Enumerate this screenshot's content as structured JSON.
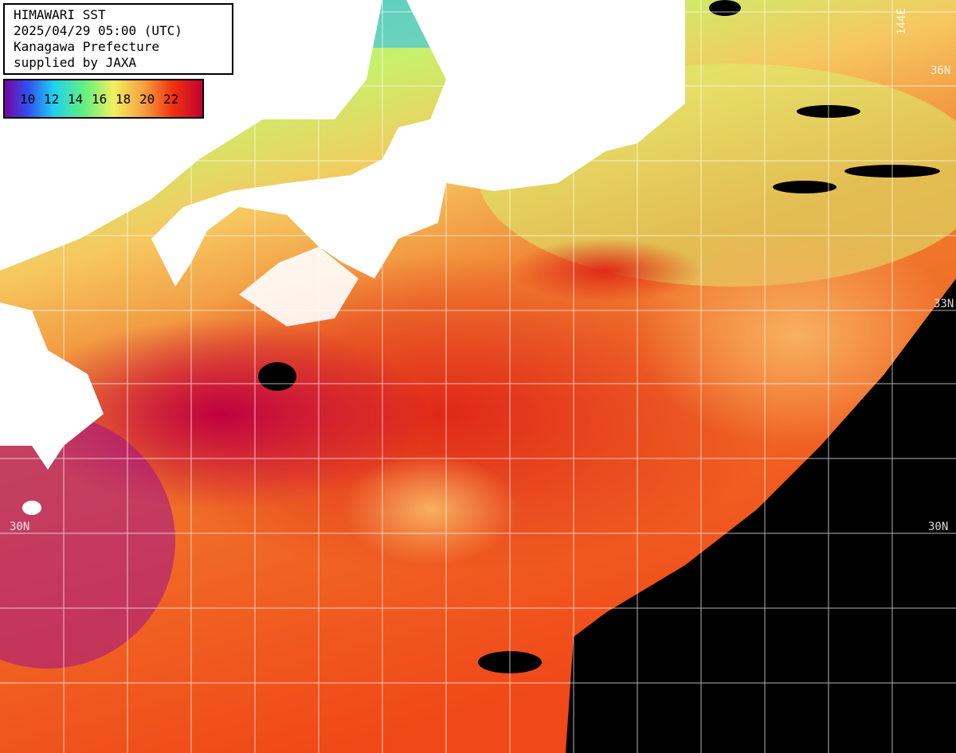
{
  "title_box": {
    "lines": [
      "HIMAWARI SST",
      "2025/04/29 05:00 (UTC)",
      "Kanagawa Prefecture",
      "supplied by JAXA"
    ]
  },
  "colorbar": {
    "labels": [
      10,
      12,
      14,
      16,
      18,
      20,
      22
    ]
  },
  "grid_labels": {
    "lat_36_right": "36N",
    "lat_33_right": "33N",
    "lat_30_left": "30N",
    "lat_30_right": "30N",
    "lon_144": "144E"
  }
}
